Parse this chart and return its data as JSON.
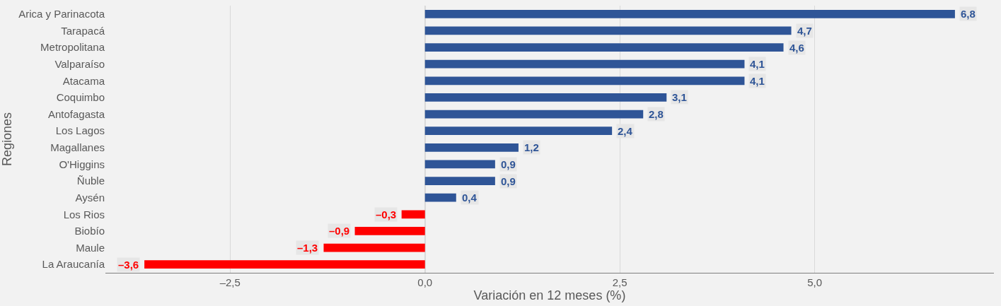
{
  "chart_data": {
    "type": "bar",
    "orientation": "horizontal",
    "xlabel": "Variación en 12 meses (%)",
    "ylabel": "Regiones",
    "categories": [
      "Arica y Parinacota",
      "Tarapacá",
      "Metropolitana",
      "Valparaíso",
      "Atacama",
      "Coquimbo",
      "Antofagasta",
      "Los Lagos",
      "Magallanes",
      "O'Higgins",
      "Ñuble",
      "Aysén",
      "Los Rios",
      "Biobío",
      "Maule",
      "La Araucanía"
    ],
    "values": [
      6.8,
      4.7,
      4.6,
      4.1,
      4.1,
      3.1,
      2.8,
      2.4,
      1.2,
      0.9,
      0.9,
      0.4,
      -0.3,
      -0.9,
      -1.3,
      -3.6
    ],
    "colors": [
      "#2f5597",
      "#2f5597",
      "#2f5597",
      "#2f5597",
      "#2f5597",
      "#2f5597",
      "#2f5597",
      "#2f5597",
      "#2f5597",
      "#2f5597",
      "#2f5597",
      "#2f5597",
      "#ff0000",
      "#ff0000",
      "#ff0000",
      "#ff0000"
    ],
    "value_labels": [
      "6,8",
      "4,7",
      "4,6",
      "4,1",
      "4,1",
      "3,1",
      "2,8",
      "2,4",
      "1,2",
      "0,9",
      "0,9",
      "0,4",
      "–0,3",
      "–0,9",
      "–1,3",
      "–3,6"
    ],
    "xlim": [
      -4.1,
      7.3
    ],
    "xticks": [
      {
        "value": -2.5,
        "label": "–2,5"
      },
      {
        "value": 0,
        "label": "0,0"
      },
      {
        "value": 2.5,
        "label": "2,5"
      },
      {
        "value": 5,
        "label": "5,0"
      }
    ],
    "grid": "x"
  }
}
